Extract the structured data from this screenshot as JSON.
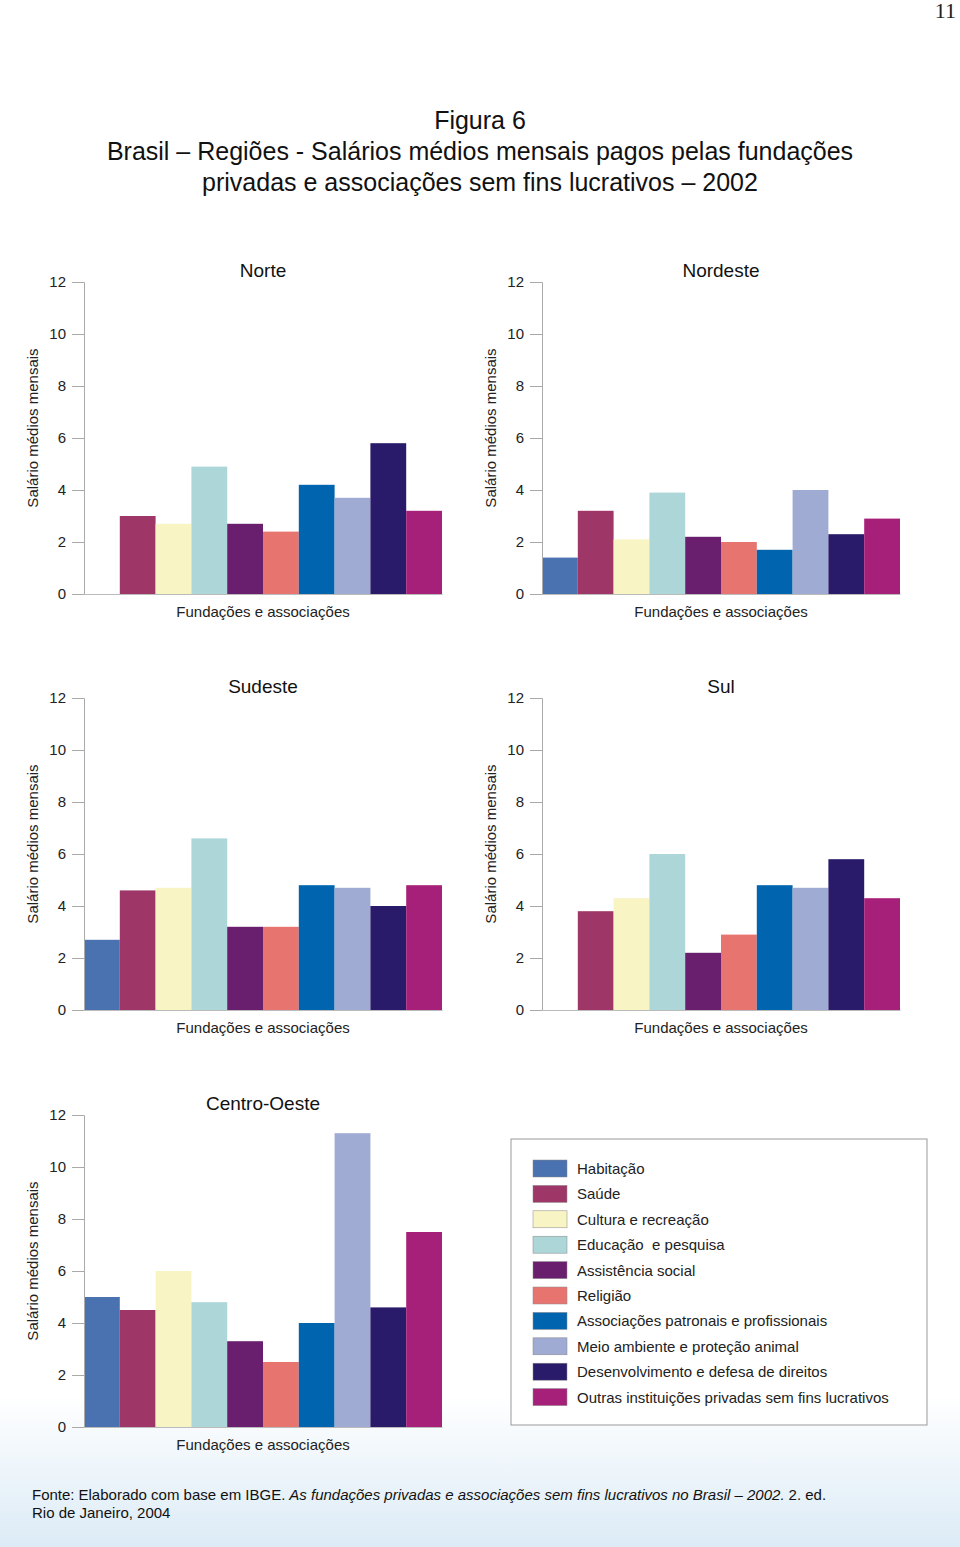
{
  "header": {
    "page_number": "11",
    "figure": "Figura 6",
    "title_lines": [
      "Brasil – Regiões - Salários médios mensais pagos pelas fundações",
      "privadas e associações sem fins lucrativos – 2002"
    ]
  },
  "footer": {
    "source_label": "Fonte:",
    "source_text": "Elaborado com base em IBGE.",
    "source_work": "As fundações privadas e associações sem fins lucrativos no Brasil – 2002.",
    "source_edition": "2. ed.",
    "source_place": "Rio de Janeiro, 2004"
  },
  "chart_data": [
    {
      "type": "bar",
      "title": "Norte",
      "x_label": "Fundações e associações",
      "y_label": "Salário médios mensais",
      "categories": [
        null
      ],
      "ylim": [
        0,
        12
      ],
      "yticks": [
        0,
        2,
        4,
        6,
        8,
        10,
        12
      ],
      "tick_labels": "y",
      "legend": false,
      "series": [
        {
          "name": "Habitação",
          "color": "#4a72b0",
          "values": [
            null
          ]
        },
        {
          "name": "Saúde",
          "color": "#9e3768",
          "values": [
            3.0
          ]
        },
        {
          "name": "Cultura e recreação",
          "color": "#f8f4c4",
          "values": [
            2.7
          ]
        },
        {
          "name": "Educação  e pesquisa",
          "color": "#acd6d8",
          "values": [
            4.9
          ]
        },
        {
          "name": "Assistência social",
          "color": "#6a1e6e",
          "values": [
            2.7
          ]
        },
        {
          "name": "Religião",
          "color": "#e87470",
          "values": [
            2.4
          ]
        },
        {
          "name": "Associações patronais e profissionais",
          "color": "#0064ae",
          "values": [
            4.2
          ]
        },
        {
          "name": "Meio ambiente e proteção animal",
          "color": "#9fabd2",
          "values": [
            3.7
          ]
        },
        {
          "name": "Desenvolvimento e defesa de direitos",
          "color": "#2a1a6a",
          "values": [
            5.8
          ]
        },
        {
          "name": "Outras instituições privadas sem fins lucrativos",
          "color": "#a6207a",
          "values": [
            3.2
          ]
        }
      ]
    },
    {
      "type": "bar",
      "title": "Nordeste",
      "x_label": "Fundações e associações",
      "y_label": "Salário médios mensais",
      "categories": [
        null
      ],
      "ylim": [
        0,
        12
      ],
      "yticks": [
        0,
        2,
        4,
        6,
        8,
        10,
        12
      ],
      "tick_labels": "y",
      "legend": false,
      "series": [
        {
          "name": "Habitação",
          "color": "#4a72b0",
          "values": [
            1.4
          ]
        },
        {
          "name": "Saúde",
          "color": "#9e3768",
          "values": [
            3.2
          ]
        },
        {
          "name": "Cultura e recreação",
          "color": "#f8f4c4",
          "values": [
            2.1
          ]
        },
        {
          "name": "Educação  e pesquisa",
          "color": "#acd6d8",
          "values": [
            3.9
          ]
        },
        {
          "name": "Assistência social",
          "color": "#6a1e6e",
          "values": [
            2.2
          ]
        },
        {
          "name": "Religião",
          "color": "#e87470",
          "values": [
            2.0
          ]
        },
        {
          "name": "Associações patronais e profissionais",
          "color": "#0064ae",
          "values": [
            1.7
          ]
        },
        {
          "name": "Meio ambiente e proteção animal",
          "color": "#9fabd2",
          "values": [
            4.0
          ]
        },
        {
          "name": "Desenvolvimento e defesa de direitos",
          "color": "#2a1a6a",
          "values": [
            2.3
          ]
        },
        {
          "name": "Outras instituições privadas sem fins lucrativos",
          "color": "#a6207a",
          "values": [
            2.9
          ]
        }
      ]
    },
    {
      "type": "bar",
      "title": "Sudeste",
      "x_label": "Fundações e associações",
      "y_label": "Salário médios mensais",
      "categories": [
        null
      ],
      "ylim": [
        0,
        12
      ],
      "yticks": [
        0,
        2,
        4,
        6,
        8,
        10,
        12
      ],
      "tick_labels": "y",
      "legend": false,
      "series": [
        {
          "name": "Habitação",
          "color": "#4a72b0",
          "values": [
            2.7
          ]
        },
        {
          "name": "Saúde",
          "color": "#9e3768",
          "values": [
            4.6
          ]
        },
        {
          "name": "Cultura e recreação",
          "color": "#f8f4c4",
          "values": [
            4.7
          ]
        },
        {
          "name": "Educação  e pesquisa",
          "color": "#acd6d8",
          "values": [
            6.6
          ]
        },
        {
          "name": "Assistência social",
          "color": "#6a1e6e",
          "values": [
            3.2
          ]
        },
        {
          "name": "Religião",
          "color": "#e87470",
          "values": [
            3.2
          ]
        },
        {
          "name": "Associações patronais e profissionais",
          "color": "#0064ae",
          "values": [
            4.8
          ]
        },
        {
          "name": "Meio ambiente e proteção animal",
          "color": "#9fabd2",
          "values": [
            4.7
          ]
        },
        {
          "name": "Desenvolvimento e defesa de direitos",
          "color": "#2a1a6a",
          "values": [
            4.0
          ]
        },
        {
          "name": "Outras instituições privadas sem fins lucrativos",
          "color": "#a6207a",
          "values": [
            4.8
          ]
        }
      ]
    },
    {
      "type": "bar",
      "title": "Sul",
      "x_label": "Fundações e associações",
      "y_label": "Salário médios mensais",
      "categories": [
        null
      ],
      "ylim": [
        0,
        12
      ],
      "yticks": [
        0,
        2,
        4,
        6,
        8,
        10,
        12
      ],
      "tick_labels": "y",
      "legend": false,
      "series": [
        {
          "name": "Habitação",
          "color": "#4a72b0",
          "values": [
            null
          ]
        },
        {
          "name": "Saúde",
          "color": "#9e3768",
          "values": [
            3.8
          ]
        },
        {
          "name": "Cultura e recreação",
          "color": "#f8f4c4",
          "values": [
            4.3
          ]
        },
        {
          "name": "Educação  e pesquisa",
          "color": "#acd6d8",
          "values": [
            6.0
          ]
        },
        {
          "name": "Assistência social",
          "color": "#6a1e6e",
          "values": [
            2.2
          ]
        },
        {
          "name": "Religião",
          "color": "#e87470",
          "values": [
            2.9
          ]
        },
        {
          "name": "Associações patronais e profissionais",
          "color": "#0064ae",
          "values": [
            4.8
          ]
        },
        {
          "name": "Meio ambiente e proteção animal",
          "color": "#9fabd2",
          "values": [
            4.7
          ]
        },
        {
          "name": "Desenvolvimento e defesa de direitos",
          "color": "#2a1a6a",
          "values": [
            5.8
          ]
        },
        {
          "name": "Outras instituições privadas sem fins lucrativos",
          "color": "#a6207a",
          "values": [
            4.3
          ]
        }
      ]
    },
    {
      "type": "bar",
      "title": "Centro-Oeste",
      "x_label": "Fundações e associações",
      "y_label": "Salário médios mensais",
      "categories": [
        null
      ],
      "ylim": [
        0,
        12
      ],
      "yticks": [
        0,
        2,
        4,
        6,
        8,
        10,
        12
      ],
      "tick_labels": "y",
      "legend": true,
      "series": [
        {
          "name": "Habitação",
          "color": "#4a72b0",
          "values": [
            5.0
          ]
        },
        {
          "name": "Saúde",
          "color": "#9e3768",
          "values": [
            4.5
          ]
        },
        {
          "name": "Cultura e recreação",
          "color": "#f8f4c4",
          "values": [
            6.0
          ]
        },
        {
          "name": "Educação  e pesquisa",
          "color": "#acd6d8",
          "values": [
            4.8
          ]
        },
        {
          "name": "Assistência social",
          "color": "#6a1e6e",
          "values": [
            3.3
          ]
        },
        {
          "name": "Religião",
          "color": "#e87470",
          "values": [
            2.5
          ]
        },
        {
          "name": "Associações patronais e profissionais",
          "color": "#0064ae",
          "values": [
            4.0
          ]
        },
        {
          "name": "Meio ambiente e proteção animal",
          "color": "#9fabd2",
          "values": [
            11.3
          ]
        },
        {
          "name": "Desenvolvimento e defesa de direitos",
          "color": "#2a1a6a",
          "values": [
            4.6
          ]
        },
        {
          "name": "Outras instituições privadas sem fins lucrativos",
          "color": "#a6207a",
          "values": [
            7.5
          ]
        }
      ]
    }
  ]
}
